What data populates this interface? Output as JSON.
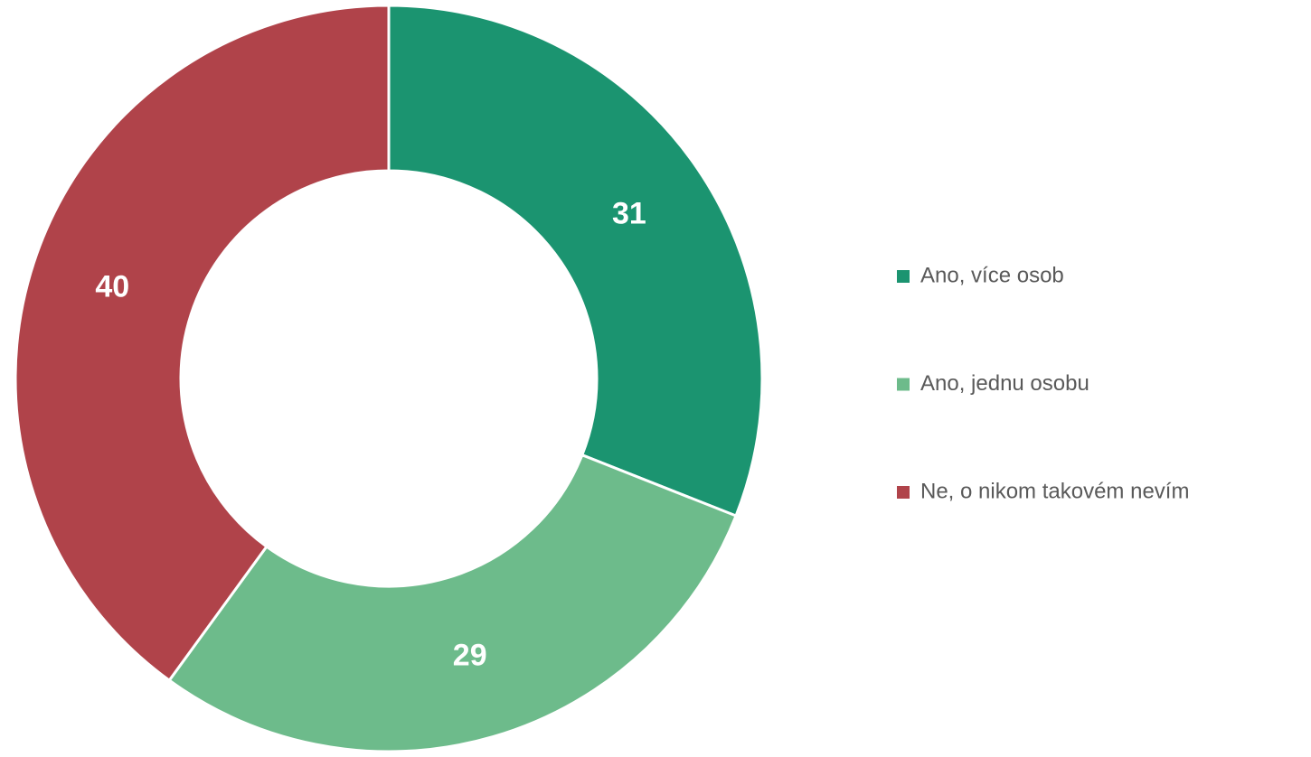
{
  "chart_data": {
    "type": "pie",
    "donut": true,
    "categories": [
      "Ano, více osob",
      "Ano, jednu osobu",
      "Ne, o nikom takovém nevím"
    ],
    "values": [
      31,
      29,
      40
    ],
    "colors": [
      "#1b9470",
      "#6dbb8b",
      "#b0434a"
    ],
    "legend": "right"
  }
}
